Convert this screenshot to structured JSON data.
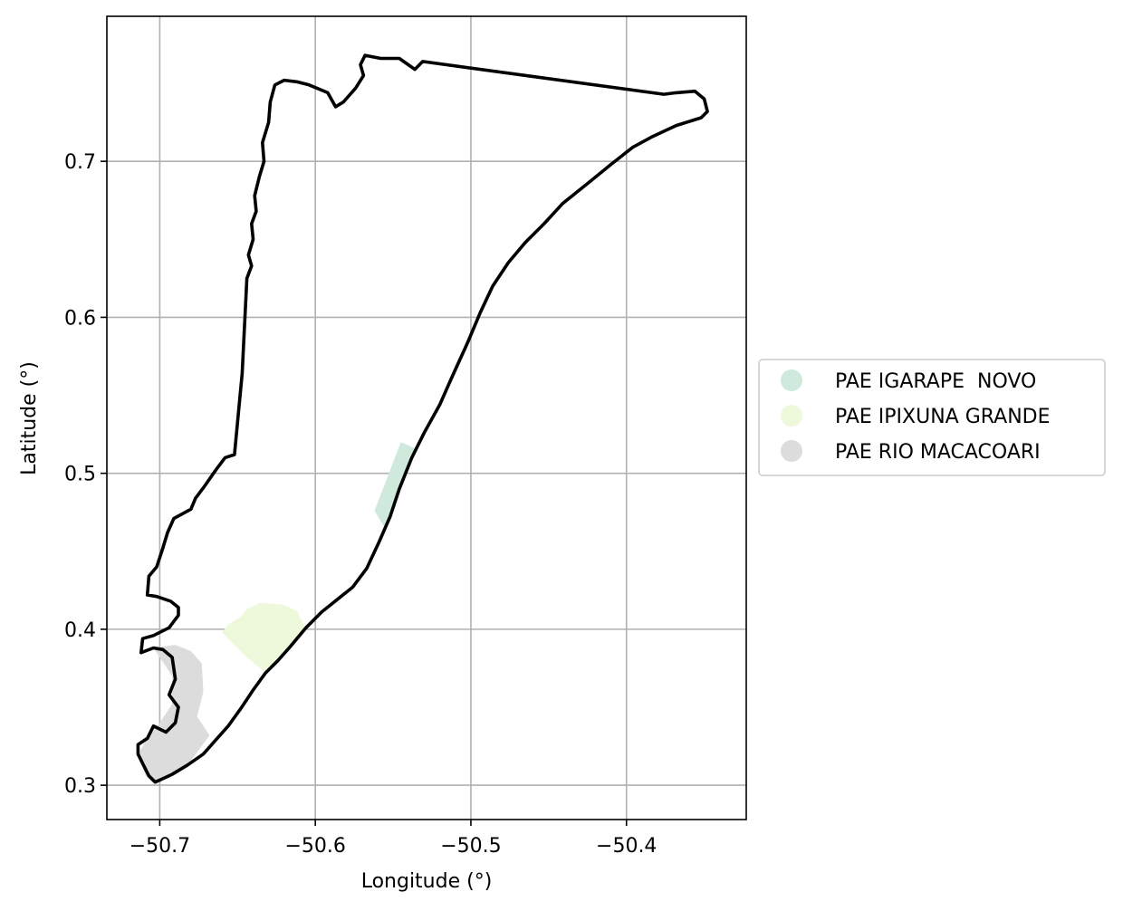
{
  "chart_data": {
    "type": "map",
    "xlabel": "Longitude (°)",
    "ylabel": "Latitude (°)",
    "xlim": [
      -50.734,
      -50.323
    ],
    "ylim": [
      0.278,
      0.793
    ],
    "x_ticks": [
      -50.7,
      -50.6,
      -50.5,
      -50.4
    ],
    "x_tick_labels": [
      "−50.7",
      "−50.6",
      "−50.5",
      "−50.4"
    ],
    "y_ticks": [
      0.3,
      0.4,
      0.5,
      0.6,
      0.7
    ],
    "y_tick_labels": [
      "0.3",
      "0.4",
      "0.5",
      "0.6",
      "0.7"
    ],
    "grid": true,
    "legend_position": "right",
    "boundary": {
      "color": "#000000",
      "coords": [
        [
          -50.703,
          0.302
        ],
        [
          -50.692,
          0.307
        ],
        [
          -50.682,
          0.313
        ],
        [
          -50.672,
          0.32
        ],
        [
          -50.664,
          0.329
        ],
        [
          -50.656,
          0.338
        ],
        [
          -50.648,
          0.349
        ],
        [
          -50.64,
          0.361
        ],
        [
          -50.632,
          0.372
        ],
        [
          -50.624,
          0.38
        ],
        [
          -50.616,
          0.389
        ],
        [
          -50.606,
          0.401
        ],
        [
          -50.596,
          0.411
        ],
        [
          -50.586,
          0.419
        ],
        [
          -50.576,
          0.427
        ],
        [
          -50.567,
          0.439
        ],
        [
          -50.559,
          0.456
        ],
        [
          -50.552,
          0.472
        ],
        [
          -50.546,
          0.49
        ],
        [
          -50.538,
          0.51
        ],
        [
          -50.53,
          0.526
        ],
        [
          -50.52,
          0.544
        ],
        [
          -50.512,
          0.562
        ],
        [
          -50.502,
          0.584
        ],
        [
          -50.494,
          0.603
        ],
        [
          -50.486,
          0.62
        ],
        [
          -50.476,
          0.635
        ],
        [
          -50.465,
          0.648
        ],
        [
          -50.453,
          0.66
        ],
        [
          -50.441,
          0.673
        ],
        [
          -50.426,
          0.685
        ],
        [
          -50.41,
          0.698
        ],
        [
          -50.396,
          0.709
        ],
        [
          -50.383,
          0.716
        ],
        [
          -50.368,
          0.723
        ],
        [
          -50.352,
          0.728
        ],
        [
          -50.348,
          0.732
        ],
        [
          -50.35,
          0.74
        ],
        [
          -50.356,
          0.745
        ],
        [
          -50.368,
          0.744
        ],
        [
          -50.376,
          0.743
        ],
        [
          -50.531,
          0.764
        ],
        [
          -50.536,
          0.759
        ],
        [
          -50.546,
          0.766
        ],
        [
          -50.558,
          0.766
        ],
        [
          -50.568,
          0.768
        ],
        [
          -50.571,
          0.762
        ],
        [
          -50.569,
          0.755
        ],
        [
          -50.574,
          0.747
        ],
        [
          -50.582,
          0.738
        ],
        [
          -50.587,
          0.735
        ],
        [
          -50.592,
          0.744
        ],
        [
          -50.604,
          0.749
        ],
        [
          -50.612,
          0.751
        ],
        [
          -50.62,
          0.752
        ],
        [
          -50.626,
          0.749
        ],
        [
          -50.629,
          0.738
        ],
        [
          -50.63,
          0.725
        ],
        [
          -50.634,
          0.712
        ],
        [
          -50.633,
          0.7
        ],
        [
          -50.636,
          0.69
        ],
        [
          -50.639,
          0.678
        ],
        [
          -50.638,
          0.668
        ],
        [
          -50.641,
          0.66
        ],
        [
          -50.64,
          0.65
        ],
        [
          -50.643,
          0.64
        ],
        [
          -50.641,
          0.633
        ],
        [
          -50.644,
          0.625
        ],
        [
          -50.647,
          0.564
        ],
        [
          -50.652,
          0.512
        ],
        [
          -50.658,
          0.51
        ],
        [
          -50.664,
          0.502
        ],
        [
          -50.671,
          0.492
        ],
        [
          -50.677,
          0.484
        ],
        [
          -50.68,
          0.477
        ],
        [
          -50.691,
          0.471
        ],
        [
          -50.695,
          0.462
        ],
        [
          -50.698,
          0.452
        ],
        [
          -50.702,
          0.44
        ],
        [
          -50.707,
          0.434
        ],
        [
          -50.708,
          0.422
        ],
        [
          -50.702,
          0.421
        ],
        [
          -50.693,
          0.418
        ],
        [
          -50.688,
          0.414
        ],
        [
          -50.688,
          0.409
        ],
        [
          -50.694,
          0.401
        ],
        [
          -50.704,
          0.396
        ],
        [
          -50.711,
          0.394
        ],
        [
          -50.712,
          0.385
        ],
        [
          -50.704,
          0.388
        ],
        [
          -50.698,
          0.387
        ],
        [
          -50.692,
          0.382
        ],
        [
          -50.69,
          0.368
        ],
        [
          -50.694,
          0.358
        ],
        [
          -50.688,
          0.35
        ],
        [
          -50.69,
          0.34
        ],
        [
          -50.696,
          0.334
        ],
        [
          -50.704,
          0.338
        ],
        [
          -50.708,
          0.33
        ],
        [
          -50.714,
          0.326
        ],
        [
          -50.714,
          0.32
        ],
        [
          -50.71,
          0.312
        ],
        [
          -50.707,
          0.306
        ],
        [
          -50.703,
          0.302
        ]
      ]
    },
    "series": [
      {
        "name": "PAE IGARAPE  NOVO",
        "color": "#cfeadc",
        "coords": [
          [
            -50.545,
            0.52
          ],
          [
            -50.536,
            0.516
          ],
          [
            -50.546,
            0.49
          ],
          [
            -50.552,
            0.472
          ],
          [
            -50.556,
            0.466
          ],
          [
            -50.562,
            0.476
          ]
        ]
      },
      {
        "name": "PAE IPIXUNA GRANDE",
        "color": "#eef8da",
        "coords": [
          [
            -50.656,
            0.403
          ],
          [
            -50.648,
            0.408
          ],
          [
            -50.644,
            0.413
          ],
          [
            -50.635,
            0.417
          ],
          [
            -50.622,
            0.416
          ],
          [
            -50.612,
            0.412
          ],
          [
            -50.608,
            0.404
          ],
          [
            -50.606,
            0.401
          ],
          [
            -50.616,
            0.389
          ],
          [
            -50.624,
            0.38
          ],
          [
            -50.632,
            0.372
          ],
          [
            -50.644,
            0.382
          ],
          [
            -50.654,
            0.392
          ],
          [
            -50.66,
            0.398
          ]
        ]
      },
      {
        "name": "PAE RIO MACACOARI",
        "color": "#dcdcdc",
        "coords": [
          [
            -50.704,
            0.388
          ],
          [
            -50.69,
            0.39
          ],
          [
            -50.68,
            0.386
          ],
          [
            -50.673,
            0.378
          ],
          [
            -50.672,
            0.36
          ],
          [
            -50.676,
            0.344
          ],
          [
            -50.668,
            0.332
          ],
          [
            -50.682,
            0.313
          ],
          [
            -50.692,
            0.307
          ],
          [
            -50.703,
            0.302
          ],
          [
            -50.709,
            0.306
          ],
          [
            -50.714,
            0.32
          ],
          [
            -50.708,
            0.33
          ],
          [
            -50.7,
            0.34
          ],
          [
            -50.692,
            0.352
          ],
          [
            -50.692,
            0.37
          ]
        ]
      }
    ]
  }
}
